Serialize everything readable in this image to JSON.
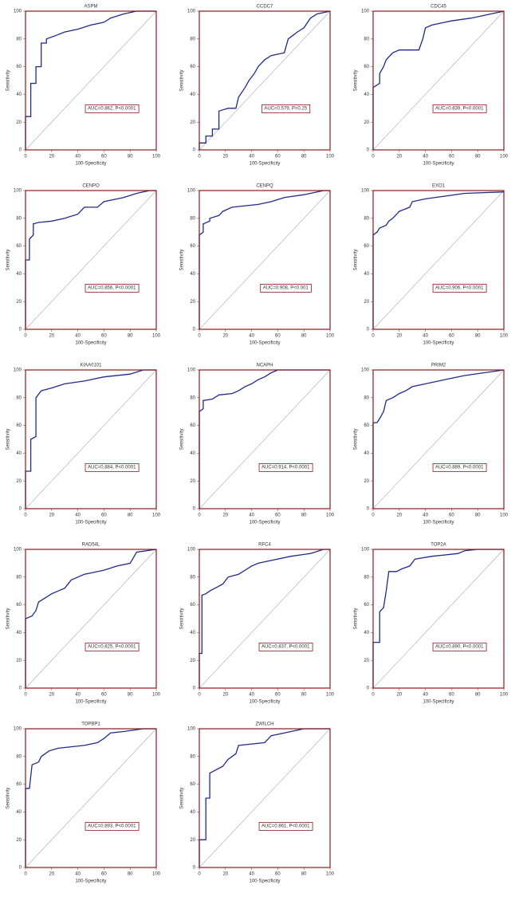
{
  "chart_data": [
    {
      "type": "line",
      "title": "ASPM",
      "xlabel": "100-Specificity",
      "ylabel": "Sensitivity",
      "annotation": "AUC=0.862, P<0.0001",
      "color": "#1f2a8c",
      "xlim": [
        0,
        100
      ],
      "ylim": [
        0,
        100
      ],
      "xticks": [
        0,
        20,
        40,
        60,
        80,
        100
      ],
      "yticks": [
        0,
        20,
        40,
        60,
        80,
        100
      ],
      "x": [
        0,
        0,
        4,
        4,
        8,
        8,
        12,
        12,
        16,
        16,
        22,
        30,
        40,
        50,
        60,
        65,
        75,
        85,
        100
      ],
      "y": [
        0,
        24,
        24,
        48,
        48,
        60,
        60,
        77,
        77,
        80,
        82,
        85,
        87,
        90,
        92,
        95,
        98,
        100,
        100
      ]
    },
    {
      "type": "line",
      "title": "CCDC7",
      "xlabel": "100-Specificity",
      "ylabel": "Sensitivity",
      "annotation": "AUC=0.579, P=0.25",
      "color": "#1f2a8c",
      "xlim": [
        0,
        100
      ],
      "ylim": [
        0,
        100
      ],
      "xticks": [
        0,
        20,
        40,
        60,
        80,
        100
      ],
      "yticks": [
        0,
        20,
        40,
        60,
        80,
        100
      ],
      "x": [
        0,
        0,
        5,
        5,
        10,
        10,
        15,
        15,
        22,
        28,
        30,
        35,
        38,
        42,
        45,
        50,
        55,
        65,
        68,
        75,
        80,
        85,
        90,
        100
      ],
      "y": [
        0,
        5,
        5,
        10,
        10,
        15,
        15,
        28,
        30,
        30,
        38,
        45,
        50,
        55,
        60,
        65,
        68,
        70,
        80,
        85,
        88,
        95,
        98,
        100
      ]
    },
    {
      "type": "line",
      "title": "CDC45",
      "xlabel": "100-Specificity",
      "ylabel": "Sensitivity",
      "annotation": "AUC=0.839, P<0.0001",
      "color": "#1f2a8c",
      "xlim": [
        0,
        100
      ],
      "ylim": [
        0,
        100
      ],
      "xticks": [
        0,
        20,
        40,
        60,
        80,
        100
      ],
      "yticks": [
        0,
        20,
        40,
        60,
        80,
        100
      ],
      "x": [
        0,
        0,
        5,
        5,
        8,
        10,
        15,
        20,
        35,
        38,
        40,
        45,
        55,
        60,
        75,
        85,
        95,
        100
      ],
      "y": [
        0,
        45,
        48,
        55,
        60,
        65,
        70,
        72,
        72,
        80,
        88,
        90,
        92,
        93,
        95,
        97,
        99,
        100
      ]
    },
    {
      "type": "line",
      "title": "CENPO",
      "xlabel": "100-Specificity",
      "ylabel": "Sensitivity",
      "annotation": "AUC=0.856, P<0.0001",
      "color": "#1f2a8c",
      "xlim": [
        0,
        100
      ],
      "ylim": [
        0,
        100
      ],
      "xticks": [
        0,
        20,
        40,
        60,
        80,
        100
      ],
      "yticks": [
        0,
        20,
        40,
        60,
        80,
        100
      ],
      "x": [
        0,
        0,
        3,
        3,
        6,
        6,
        10,
        20,
        30,
        40,
        45,
        55,
        60,
        75,
        85,
        95,
        100
      ],
      "y": [
        0,
        50,
        50,
        65,
        68,
        76,
        77,
        78,
        80,
        83,
        88,
        88,
        92,
        95,
        98,
        100,
        100
      ]
    },
    {
      "type": "line",
      "title": "CENPQ",
      "xlabel": "100-Specificity",
      "ylabel": "Sensitivity",
      "annotation": "AUC=0.908, P<0.001",
      "color": "#1f2a8c",
      "xlim": [
        0,
        100
      ],
      "ylim": [
        0,
        100
      ],
      "xticks": [
        0,
        20,
        40,
        60,
        80,
        100
      ],
      "yticks": [
        0,
        20,
        40,
        60,
        80,
        100
      ],
      "x": [
        0,
        0,
        3,
        3,
        8,
        8,
        15,
        18,
        25,
        35,
        45,
        55,
        65,
        80,
        95,
        100
      ],
      "y": [
        0,
        68,
        70,
        76,
        78,
        80,
        82,
        85,
        88,
        89,
        90,
        92,
        95,
        97,
        100,
        100
      ]
    },
    {
      "type": "line",
      "title": "EXO1",
      "xlabel": "100-Specificity",
      "ylabel": "Sensitivity",
      "annotation": "AUC=0.906, P<0.0001",
      "color": "#1f2a8c",
      "xlim": [
        0,
        100
      ],
      "ylim": [
        0,
        100
      ],
      "xticks": [
        0,
        20,
        40,
        60,
        80,
        100
      ],
      "yticks": [
        0,
        20,
        40,
        60,
        80,
        100
      ],
      "x": [
        0,
        0,
        3,
        5,
        10,
        12,
        15,
        20,
        28,
        30,
        40,
        55,
        70,
        100
      ],
      "y": [
        0,
        68,
        70,
        73,
        75,
        78,
        80,
        85,
        88,
        92,
        94,
        96,
        98,
        99
      ]
    },
    {
      "type": "line",
      "title": "KIAA0101",
      "xlabel": "100-Specificity",
      "ylabel": "Sensitivity",
      "annotation": "AUC=0.884, P<0.0001",
      "color": "#1f2a8c",
      "xlim": [
        0,
        100
      ],
      "ylim": [
        0,
        100
      ],
      "xticks": [
        0,
        20,
        40,
        60,
        80,
        100
      ],
      "yticks": [
        0,
        20,
        40,
        60,
        80,
        100
      ],
      "x": [
        0,
        0,
        4,
        4,
        8,
        8,
        12,
        20,
        30,
        45,
        60,
        80,
        90,
        100
      ],
      "y": [
        0,
        27,
        27,
        50,
        52,
        80,
        85,
        87,
        90,
        92,
        95,
        97,
        100,
        100
      ]
    },
    {
      "type": "line",
      "title": "NCAPH",
      "xlabel": "100-Specificity",
      "ylabel": "Sensitivity",
      "annotation": "AUC=0.914, P<0.0001",
      "color": "#1f2a8c",
      "xlim": [
        0,
        100
      ],
      "ylim": [
        0,
        100
      ],
      "xticks": [
        0,
        20,
        40,
        60,
        80,
        100
      ],
      "yticks": [
        0,
        20,
        40,
        60,
        80,
        100
      ],
      "x": [
        0,
        0,
        3,
        3,
        10,
        15,
        25,
        30,
        35,
        40,
        45,
        50,
        55,
        60,
        100
      ],
      "y": [
        0,
        70,
        72,
        78,
        79,
        82,
        83,
        85,
        88,
        90,
        93,
        95,
        98,
        100,
        100
      ]
    },
    {
      "type": "line",
      "title": "PRIM2",
      "xlabel": "100-Specificity",
      "ylabel": "Sensitivity",
      "annotation": "AUC=0.889, P<0.0001",
      "color": "#1f2a8c",
      "xlim": [
        0,
        100
      ],
      "ylim": [
        0,
        100
      ],
      "xticks": [
        0,
        20,
        40,
        60,
        80,
        100
      ],
      "yticks": [
        0,
        20,
        40,
        60,
        80,
        100
      ],
      "x": [
        0,
        0,
        3,
        5,
        8,
        10,
        15,
        20,
        25,
        30,
        40,
        50,
        60,
        70,
        85,
        100
      ],
      "y": [
        0,
        62,
        62,
        65,
        70,
        78,
        80,
        83,
        85,
        88,
        90,
        92,
        94,
        96,
        98,
        100
      ]
    },
    {
      "type": "line",
      "title": "RAD54L",
      "xlabel": "100-Specificity",
      "ylabel": "Sensitivity",
      "annotation": "AUC=0.825, P<0.0001",
      "color": "#1f2a8c",
      "xlim": [
        0,
        100
      ],
      "ylim": [
        0,
        100
      ],
      "xticks": [
        0,
        20,
        40,
        60,
        80,
        100
      ],
      "yticks": [
        0,
        20,
        40,
        60,
        80,
        100
      ],
      "x": [
        0,
        0,
        5,
        8,
        10,
        15,
        20,
        25,
        30,
        35,
        40,
        45,
        50,
        60,
        70,
        80,
        85,
        100
      ],
      "y": [
        0,
        50,
        52,
        56,
        62,
        65,
        68,
        70,
        72,
        78,
        80,
        82,
        83,
        85,
        88,
        90,
        98,
        100
      ]
    },
    {
      "type": "line",
      "title": "RFC4",
      "xlabel": "100-Specificity",
      "ylabel": "Sensitivity",
      "annotation": "AUC=0.837, P<0.0001",
      "color": "#1f2a8c",
      "xlim": [
        0,
        100
      ],
      "ylim": [
        0,
        100
      ],
      "xticks": [
        0,
        20,
        40,
        60,
        80,
        100
      ],
      "yticks": [
        0,
        20,
        40,
        60,
        80,
        100
      ],
      "x": [
        0,
        0,
        2,
        2,
        5,
        8,
        12,
        18,
        22,
        30,
        40,
        45,
        55,
        70,
        85,
        95,
        100
      ],
      "y": [
        0,
        25,
        25,
        67,
        68,
        70,
        72,
        75,
        80,
        82,
        88,
        90,
        92,
        95,
        97,
        100,
        100
      ]
    },
    {
      "type": "line",
      "title": "TOP2A",
      "xlabel": "100-Specificity",
      "ylabel": "Sensitivity",
      "annotation": "AUC=0.890, P<0.0001",
      "color": "#1f2a8c",
      "xlim": [
        0,
        100
      ],
      "ylim": [
        0,
        100
      ],
      "xticks": [
        0,
        20,
        40,
        60,
        80,
        100
      ],
      "yticks": [
        0,
        20,
        40,
        60,
        80,
        100
      ],
      "x": [
        0,
        0,
        5,
        5,
        8,
        10,
        12,
        18,
        22,
        28,
        32,
        45,
        55,
        65,
        70,
        80,
        100
      ],
      "y": [
        0,
        33,
        33,
        55,
        58,
        70,
        84,
        84,
        86,
        88,
        93,
        95,
        96,
        97,
        99,
        100,
        100
      ]
    },
    {
      "type": "line",
      "title": "TOPBP1",
      "xlabel": "100-Specificity",
      "ylabel": "Sensitivity",
      "annotation": "AUC=0.893, P<0.0001",
      "color": "#1f2a8c",
      "xlim": [
        0,
        100
      ],
      "ylim": [
        0,
        100
      ],
      "xticks": [
        0,
        20,
        40,
        60,
        80,
        100
      ],
      "yticks": [
        0,
        20,
        40,
        60,
        80,
        100
      ],
      "x": [
        0,
        0,
        3,
        5,
        10,
        12,
        18,
        25,
        35,
        45,
        55,
        60,
        65,
        75,
        90,
        100
      ],
      "y": [
        0,
        57,
        57,
        74,
        76,
        80,
        84,
        86,
        87,
        88,
        90,
        93,
        97,
        98,
        100,
        100
      ]
    },
    {
      "type": "line",
      "title": "ZWILCH",
      "xlabel": "100-Specificity",
      "ylabel": "Sensitivity",
      "annotation": "AUC=0.861, P<0.0001",
      "color": "#1f2a8c",
      "xlim": [
        0,
        100
      ],
      "ylim": [
        0,
        100
      ],
      "xticks": [
        0,
        20,
        40,
        60,
        80,
        100
      ],
      "yticks": [
        0,
        20,
        40,
        60,
        80,
        100
      ],
      "x": [
        0,
        0,
        5,
        5,
        8,
        8,
        12,
        18,
        22,
        28,
        30,
        40,
        50,
        55,
        65,
        80,
        100
      ],
      "y": [
        0,
        20,
        20,
        50,
        50,
        68,
        70,
        73,
        78,
        82,
        88,
        89,
        90,
        95,
        97,
        100,
        100
      ]
    }
  ]
}
